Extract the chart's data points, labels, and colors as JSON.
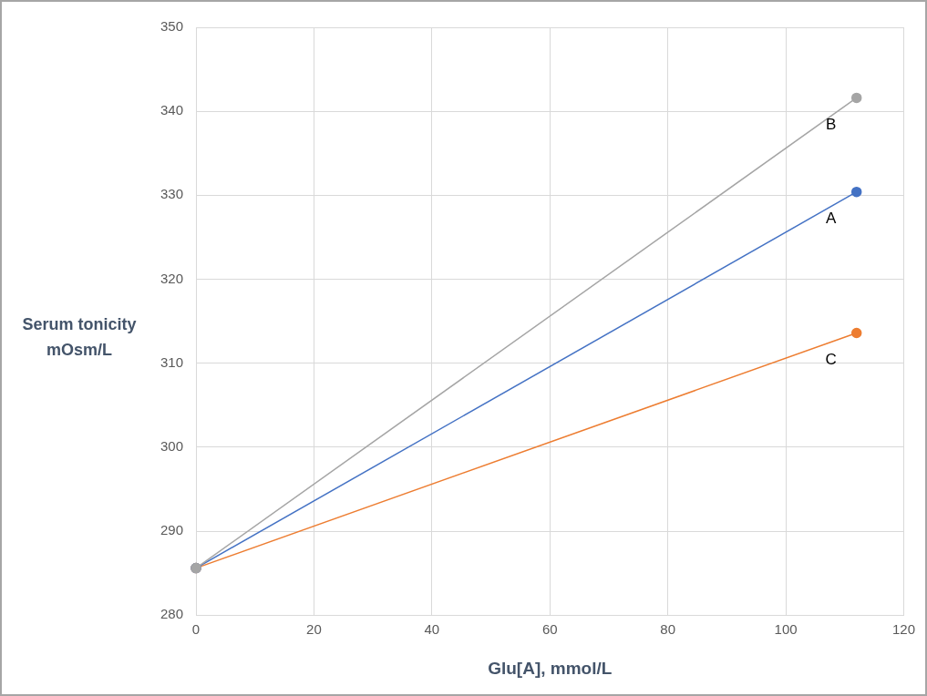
{
  "chart_data": {
    "type": "line",
    "xlabel": "Glu[A], mmol/L",
    "ylabel": "Serum tonicity mOsm/L",
    "xlim": [
      0,
      120
    ],
    "xticks": [
      0,
      20,
      40,
      60,
      80,
      100,
      120
    ],
    "ylim": [
      280,
      350
    ],
    "yticks": [
      280,
      290,
      300,
      310,
      320,
      330,
      340,
      350
    ],
    "grid": true,
    "legend": false,
    "marker": "circle",
    "line_style": "solid",
    "x": [
      0,
      112
    ],
    "series": [
      {
        "name": "B",
        "color": "#a5a5a5",
        "values": [
          285.6,
          341.6
        ]
      },
      {
        "name": "A",
        "color": "#4472c4",
        "values": [
          285.6,
          330.4
        ]
      },
      {
        "name": "C",
        "color": "#ed7d31",
        "values": [
          285.6,
          313.6
        ]
      }
    ]
  }
}
